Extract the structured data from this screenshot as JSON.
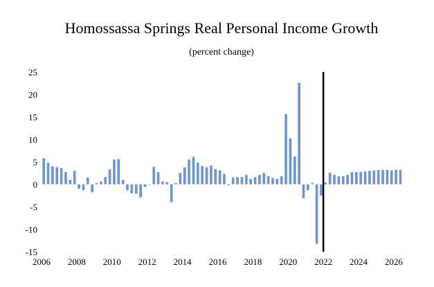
{
  "chart_data": {
    "type": "bar",
    "title": "Homossassa Springs Real Personal Income Growth",
    "subtitle": "(percent change)",
    "xlabel": "",
    "ylabel": "",
    "ylim": [
      -15,
      25
    ],
    "y_ticks": [
      25,
      20,
      15,
      10,
      5,
      0,
      -5,
      -10,
      -15
    ],
    "x_range": [
      2006,
      2026.75
    ],
    "x_ticks": [
      "2006",
      "2008",
      "2010",
      "2012",
      "2014",
      "2016",
      "2018",
      "2020",
      "2022",
      "2024",
      "2026"
    ],
    "forecast_marker_year": 2022,
    "bar_color": "#7094cc",
    "marker_color": "#000000",
    "series": [
      {
        "name": "Real Personal Income Growth",
        "start_year": 2006,
        "frequency": "quarterly",
        "values": [
          5.8,
          4.8,
          4.0,
          3.8,
          3.6,
          2.7,
          1.0,
          3.0,
          -1.0,
          -1.3,
          1.5,
          -1.8,
          0.3,
          0.6,
          1.6,
          3.3,
          5.5,
          5.6,
          1.0,
          -1.3,
          -2.0,
          -2.1,
          -2.9,
          -0.6,
          0.0,
          3.9,
          2.7,
          0.6,
          0.5,
          -4.0,
          0.3,
          2.5,
          3.8,
          5.5,
          6.1,
          4.8,
          4.1,
          3.8,
          4.2,
          3.4,
          3.1,
          2.3,
          -0.2,
          1.5,
          1.6,
          1.6,
          2.1,
          1.2,
          1.6,
          2.1,
          2.5,
          1.8,
          1.4,
          1.2,
          1.8,
          15.6,
          10.2,
          6.2,
          22.6,
          -3.1,
          -1.3,
          0.3,
          -13.2,
          -2.5,
          0.4,
          2.6,
          2.1,
          1.8,
          1.8,
          2.1,
          2.7,
          2.7,
          2.8,
          2.9,
          3.0,
          3.1,
          3.2,
          3.2,
          3.2,
          3.1,
          3.2,
          3.2
        ]
      }
    ]
  }
}
